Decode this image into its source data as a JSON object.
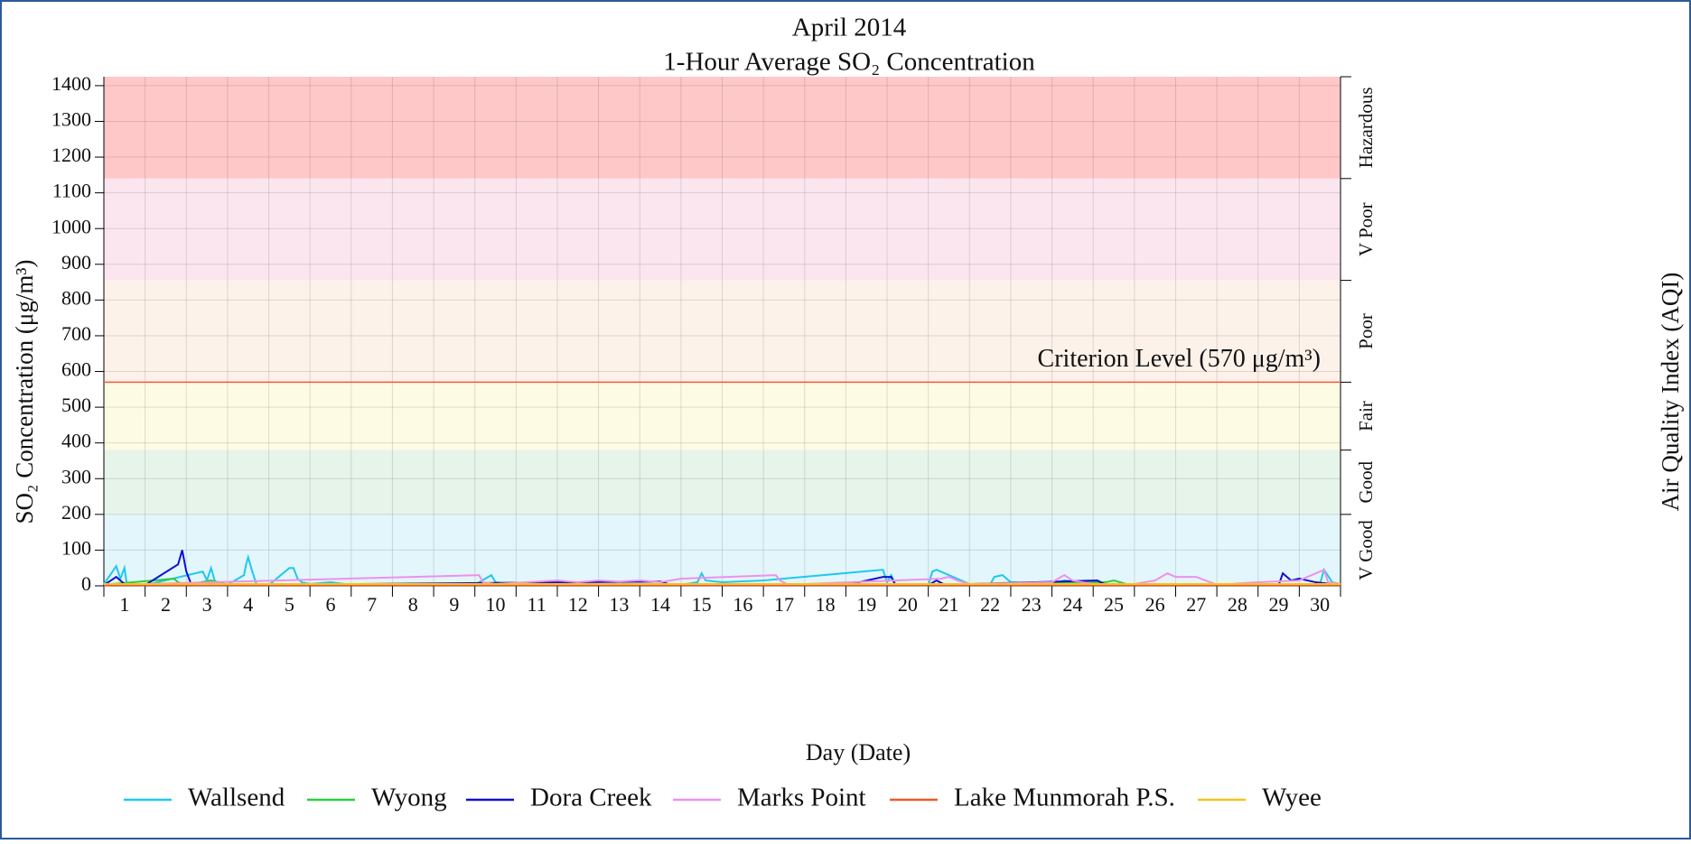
{
  "chart_data": {
    "type": "line",
    "title": "April 2014",
    "subtitle": "1-Hour Average SO₂ Concentration",
    "y_label": "SO₂ Concentration (μg/m³)",
    "y2_label": "Air Quality Index (AQI)",
    "x_label": "Day (Date)",
    "categories": [
      "1",
      "2",
      "3",
      "4",
      "5",
      "6",
      "7",
      "8",
      "9",
      "10",
      "11",
      "12",
      "13",
      "14",
      "15",
      "16",
      "17",
      "18",
      "19",
      "20",
      "21",
      "22",
      "23",
      "24",
      "25",
      "26",
      "27",
      "28",
      "29",
      "30"
    ],
    "xlim": [
      0,
      30
    ],
    "ylim": [
      0,
      1425
    ],
    "yticks": [
      0,
      100,
      200,
      300,
      400,
      500,
      600,
      700,
      800,
      900,
      1000,
      1100,
      1200,
      1300,
      1400
    ],
    "grid": true,
    "bands": [
      {
        "label": "V Good",
        "from": 0,
        "to": 200,
        "color": "#e2f6fb"
      },
      {
        "label": "Good",
        "from": 200,
        "to": 380,
        "color": "#e6f4ea"
      },
      {
        "label": "Fair",
        "from": 380,
        "to": 570,
        "color": "#fdfbe3"
      },
      {
        "label": "Poor",
        "from": 570,
        "to": 855,
        "color": "#fdf2ea"
      },
      {
        "label": "V Poor",
        "from": 855,
        "to": 1140,
        "color": "#fbe6f0"
      },
      {
        "label": "Hazardous",
        "from": 1140,
        "to": 1425,
        "color": "#fec8c8"
      }
    ],
    "criterion": {
      "text": "Criterion Level (570 μg/m³)",
      "value": 570,
      "color": "#f05a3c"
    },
    "series": [
      {
        "name": "Wallsend",
        "color": "#1ec8f0",
        "x": [
          0,
          0.3,
          0.4,
          0.5,
          0.55,
          0.7,
          1,
          2.4,
          2.5,
          2.6,
          2.7,
          3,
          3.4,
          3.45,
          3.5,
          3.6,
          3.7,
          4,
          4.5,
          4.6,
          4.7,
          4.8,
          5,
          5.5,
          6,
          9,
          9.4,
          9.5,
          10,
          14,
          14.4,
          14.5,
          14.6,
          15,
          16,
          18.9,
          19,
          19.1,
          19.2,
          20,
          20.1,
          20.2,
          21,
          21.5,
          21.6,
          21.8,
          22,
          23,
          23.3,
          24,
          29.5,
          29.6,
          29.8,
          30
        ],
        "values": [
          5,
          55,
          20,
          50,
          10,
          5,
          2,
          40,
          15,
          50,
          10,
          3,
          30,
          60,
          80,
          40,
          5,
          2,
          50,
          50,
          20,
          10,
          5,
          10,
          3,
          3,
          30,
          10,
          3,
          3,
          10,
          35,
          15,
          10,
          15,
          45,
          10,
          30,
          5,
          3,
          40,
          45,
          5,
          3,
          25,
          30,
          10,
          5,
          15,
          5,
          5,
          45,
          10,
          5
        ]
      },
      {
        "name": "Wyong",
        "color": "#2ecc40",
        "x": [
          0,
          1.7,
          1.8,
          2,
          2.6,
          2.8,
          3,
          10,
          20,
          24.3,
          24.5,
          24.8,
          25,
          30
        ],
        "values": [
          3,
          20,
          10,
          3,
          15,
          10,
          3,
          3,
          3,
          10,
          15,
          5,
          3,
          3
        ]
      },
      {
        "name": "Dora Creek",
        "color": "#1010d0",
        "x": [
          0,
          0.3,
          0.5,
          1,
          1.8,
          1.9,
          2,
          2.1,
          2.2,
          3,
          13.5,
          13.7,
          14,
          18,
          18.9,
          19.1,
          19.2,
          20,
          20.2,
          20.4,
          24.1,
          24.3,
          28.5,
          28.6,
          28.8,
          29,
          29.4,
          30
        ],
        "values": [
          2,
          25,
          5,
          2,
          60,
          100,
          40,
          10,
          2,
          2,
          12,
          5,
          2,
          2,
          25,
          25,
          3,
          2,
          15,
          3,
          15,
          3,
          2,
          35,
          15,
          20,
          10,
          2
        ]
      },
      {
        "name": "Marks Point",
        "color": "#ee90ee",
        "x": [
          0,
          9.1,
          9.2,
          9.5,
          11,
          11.5,
          12,
          12.5,
          13,
          13.5,
          14,
          16.3,
          16.4,
          16.6,
          20.3,
          20.5,
          20.7,
          21,
          23,
          23.3,
          23.5,
          24,
          25,
          25.5,
          25.8,
          26,
          26.5,
          27,
          28,
          29,
          29.6,
          29.7,
          30
        ],
        "values": [
          2,
          30,
          10,
          5,
          15,
          10,
          15,
          12,
          15,
          10,
          20,
          30,
          15,
          3,
          20,
          25,
          15,
          5,
          10,
          30,
          15,
          5,
          5,
          15,
          35,
          25,
          25,
          3,
          10,
          15,
          45,
          10,
          5
        ]
      },
      {
        "name": "Lake Munmorah P.S.",
        "color": "#f05a28",
        "x": [
          0,
          30
        ],
        "values": [
          2,
          2
        ]
      },
      {
        "name": "Wyee",
        "color": "#f5c518",
        "x": [
          0,
          30
        ],
        "values": [
          5,
          5
        ]
      }
    ]
  }
}
